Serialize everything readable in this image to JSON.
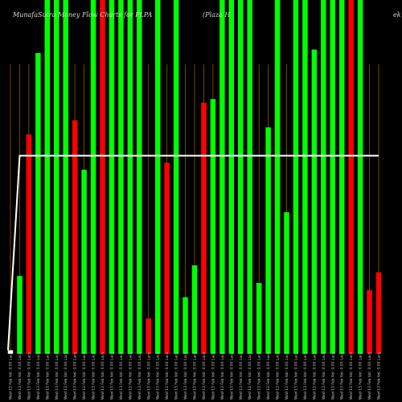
{
  "chart_data": {
    "type": "bar",
    "title_left": "MunafaSutra Money Flow Charts for PLPA",
    "title_mid": "(Plaza H",
    "title_right": "ek",
    "x_labels": [
      "Wed 13 Feb Vol: 0.00 Lacs",
      "Wed 13 Feb Vol: 0.00 Lacs",
      "Wed 13 Feb Vol: 0.00 Lacs",
      "Wed 13 Feb Vol: 0.00 Lacs",
      "Wed 13 Feb Vol: 0.00 Lacs",
      "Wed 13 Feb Vol: 0.00 Lacs",
      "Wed 13 Feb Vol: 0.00 Lacs",
      "Wed 13 Feb Vol: 0.00 Lacs",
      "Wed 13 Feb Vol: 0.00 Lacs",
      "Wed 13 Feb Vol: 0.00 Lacs",
      "Wed 13 Feb Vol: 0.00 Lacs",
      "Wed 13 Feb Vol: 0.00 Lacs",
      "Wed 13 Feb Vol: 0.00 Lacs",
      "Wed 13 Feb Vol: 0.00 Lacs",
      "Wed 13 Feb Vol: 0.00 Lacs",
      "Wed 13 Feb Vol: 0.00 Lacs",
      "Wed 13 Feb Vol: 0.00 Lacs",
      "Wed 13 Feb Vol: 0.00 Lacs",
      "Wed 13 Feb Vol: 0.00 Lacs",
      "Wed 13 Feb Vol: 0.00 Lacs",
      "Wed 13 Feb Vol: 0.00 Lacs",
      "Wed 13 Feb Vol: 0.00 Lacs",
      "Wed 13 Feb Vol: 0.00 Lacs",
      "Wed 13 Feb Vol: 0.00 Lacs",
      "Wed 13 Feb Vol: 0.00 Lacs",
      "Wed 13 Feb Vol: 0.00 Lacs",
      "Wed 13 Feb Vol: 0.00 Lacs",
      "Wed 13 Feb Vol: 0.00 Lacs",
      "Wed 13 Feb Vol: 0.00 Lacs",
      "Wed 13 Feb Vol: 0.00 Lacs",
      "Wed 13 Feb Vol: 0.00 Lacs",
      "Wed 13 Feb Vol: 0.00 Lacs",
      "Wed 13 Feb Vol: 0.00 Lacs",
      "Wed 13 Feb Vol: 0.00 Lacs",
      "Wed 13 Feb Vol: 0.00 Lacs",
      "Wed 13 Feb Vol: 0.00 Lacs",
      "Wed 13 Feb Vol: 0.00 Lacs",
      "Wed 13 Feb Vol: 0.00 Lacs",
      "Wed 13 Feb Vol: 0.00 Lacs",
      "Wed 13 Feb Vol: 0.00 Lacs",
      "Wed 13 Feb Vol: 0.00 Lacs"
    ],
    "values": [
      1,
      22,
      62,
      85,
      100,
      100,
      100,
      66,
      52,
      100,
      100,
      100,
      100,
      100,
      100,
      10,
      100,
      54,
      100,
      16,
      25,
      71,
      72,
      100,
      100,
      100,
      100,
      20,
      64,
      100,
      40,
      100,
      100,
      86,
      100,
      100,
      100,
      100,
      100,
      18,
      23
    ],
    "colors": [
      "white",
      "green",
      "red",
      "green",
      "green",
      "green",
      "green",
      "red",
      "green",
      "green",
      "red",
      "green",
      "green",
      "green",
      "green",
      "red",
      "green",
      "red",
      "green",
      "green",
      "green",
      "red",
      "green",
      "green",
      "green",
      "green",
      "green",
      "green",
      "green",
      "green",
      "green",
      "green",
      "green",
      "green",
      "green",
      "green",
      "green",
      "red",
      "green",
      "red",
      "red"
    ],
    "line_values": [
      1,
      56,
      56,
      56,
      56,
      56,
      56,
      56,
      56,
      56,
      56,
      56,
      56,
      56,
      56,
      56,
      56,
      56,
      56,
      56,
      56,
      56,
      56,
      56,
      56,
      56,
      56,
      56,
      56,
      56,
      56,
      56,
      56,
      56,
      56,
      56,
      56,
      56,
      56,
      56,
      56
    ],
    "ylim": [
      0,
      100
    ],
    "grid": "vertical",
    "legend": "none",
    "palette": {
      "green": "#00ff00",
      "red": "#ff0000",
      "white": "#ffffff",
      "grid": "#8a5a00",
      "background": "#000000"
    }
  }
}
